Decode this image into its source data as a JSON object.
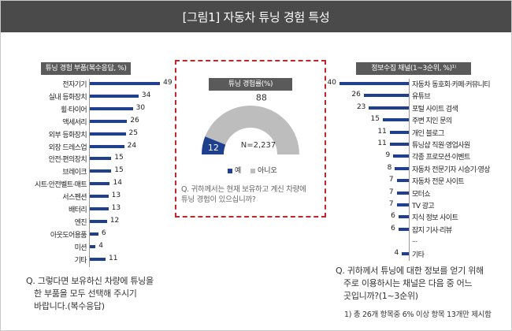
{
  "title": "[그림1] 자동차 튜닝 경험 특성",
  "colors": {
    "bar": "#1f3f8f",
    "donut_yes": "#1f3f8f",
    "donut_no": "#bdbdbd",
    "highlight_border": "#c0272d"
  },
  "chart_data": [
    {
      "type": "bar",
      "orientation": "horizontal",
      "title": "튜닝 경험 부품(복수응답, %)",
      "categories": [
        "전자기기",
        "실내 등화장치",
        "휠·타이어",
        "액세서리",
        "외부 등화장치",
        "외장 드레스업",
        "안전·편의장치",
        "브레이크",
        "시트·안전벨트·매트",
        "서스펜션",
        "배터리",
        "엔진",
        "아웃도어용품",
        "미션",
        "기타"
      ],
      "values": [
        49,
        34,
        30,
        26,
        25,
        24,
        15,
        15,
        14,
        13,
        13,
        12,
        6,
        4,
        11
      ],
      "xlim": [
        0,
        50
      ],
      "question": "Q. 그렇다면 보유하신 차량에 튜닝을 한 부품을 모두 선택해 주시기 바랍니다.(복수응답)",
      "question_lines": [
        "Q. 그렇다면 보유하신 차량에 튜닝을",
        "한 부품을 모두 선택해 주시기",
        "바랍니다.(복수응답)"
      ]
    },
    {
      "type": "pie",
      "style": "half-donut",
      "title": "튜닝 경험률(%)",
      "categories": [
        "예",
        "아니오"
      ],
      "values": [
        12,
        88
      ],
      "annotation": "N=2,237",
      "legend": [
        "예",
        "아니오"
      ],
      "question": "Q. 귀하께서는 현재 보유하고 계신 차량에 튜닝 경험이 있으십니까?",
      "question_lines": [
        "Q. 귀하께서는 현재 보유하고 계신 차량에",
        "튜닝 경험이 있으십니까?"
      ]
    },
    {
      "type": "bar",
      "orientation": "horizontal",
      "title": "정보수집 채널(1~3순위, %)¹⁾",
      "categories": [
        "자동차 동호회·카페·커뮤니티",
        "유튜브",
        "포털 사이트 검색",
        "주변 지인 문의",
        "개인 블로그",
        "튜닝샵 직원·영업사원",
        "각종 프로모션·이벤트",
        "자동차 전문기자 시승기·영상",
        "자동차 전문 사이트",
        "모터쇼",
        "TV 광고",
        "지식 정보 사이트",
        "잡지 기사·리뷰",
        "...",
        "기타"
      ],
      "values": [
        40,
        26,
        23,
        15,
        11,
        11,
        9,
        8,
        7,
        7,
        7,
        6,
        6,
        null,
        4
      ],
      "xlim": [
        0,
        40
      ],
      "question": "Q. 귀하께서 튜닝에 대한 정보를 얻기 위해 주로 이용하시는 채널은 다음 중 어느 곳입니까?(1~3순위)",
      "question_lines": [
        "Q. 귀하께서 튜닝에 대한 정보를 얻기 위해",
        "주로 이용하시는 채널은 다음 중 어느",
        "곳입니까?(1~3순위)"
      ],
      "footnote": "1) 총 26개 항목중 6% 이상 항목 13개만 제시함"
    }
  ]
}
